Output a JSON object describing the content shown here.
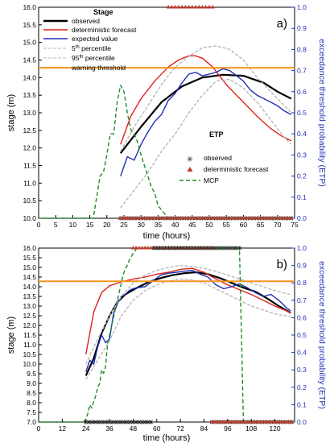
{
  "chart_data": [
    {
      "type": "line",
      "panel_label": "a)",
      "xlabel": "time (hours)",
      "ylabel": "stage (m)",
      "y2label": "exceedance threshold probability (ETP)",
      "xlim": [
        0,
        75
      ],
      "ylim": [
        10.0,
        16.0
      ],
      "y2lim": [
        0.0,
        1.0
      ],
      "x_ticks": [
        "0",
        "5",
        "10",
        "15",
        "20",
        "25",
        "30",
        "35",
        "40",
        "45",
        "50",
        "55",
        "60",
        "65",
        "70",
        "75"
      ],
      "y_ticks": [
        "10.0",
        "10.5",
        "11.0",
        "11.5",
        "12.0",
        "12.5",
        "13.0",
        "13.5",
        "14.0",
        "14.5",
        "15.0",
        "15.5",
        "16.0"
      ],
      "y2_ticks": [
        "0.0",
        "0.1",
        "0.2",
        "0.3",
        "0.4",
        "0.5",
        "0.6",
        "0.7",
        "0.8",
        "0.9",
        "1.0"
      ],
      "legend_stage_title": "Stage",
      "legend_etp_title": "ETP",
      "series": [
        {
          "name": "observed",
          "color": "#000000",
          "x": [
            24,
            30,
            36,
            42,
            48,
            54,
            60,
            66,
            70,
            74
          ],
          "y": [
            11.85,
            12.6,
            13.3,
            13.75,
            14.0,
            14.08,
            14.05,
            13.85,
            13.6,
            13.4
          ]
        },
        {
          "name": "deterministic forecast",
          "color": "#e0211b",
          "x": [
            24,
            27,
            30,
            34,
            38,
            41,
            44,
            46,
            48,
            51,
            55,
            60,
            64,
            68,
            71,
            74
          ],
          "y": [
            12.1,
            12.9,
            13.4,
            13.9,
            14.3,
            14.5,
            14.62,
            14.62,
            14.55,
            14.3,
            13.8,
            13.3,
            12.9,
            12.55,
            12.35,
            12.2
          ]
        },
        {
          "name": "expected value",
          "color": "#1f2fb5",
          "x": [
            24,
            26,
            28,
            30,
            32,
            34,
            36,
            38,
            40,
            42,
            44,
            46,
            48,
            50,
            52,
            54,
            56,
            58,
            60,
            62,
            64,
            66,
            68,
            70,
            72,
            74
          ],
          "y": [
            11.2,
            11.75,
            11.65,
            12.1,
            12.45,
            12.75,
            12.95,
            13.35,
            13.55,
            13.85,
            14.1,
            14.15,
            14.05,
            14.1,
            14.15,
            14.25,
            14.2,
            14.05,
            13.9,
            13.65,
            13.5,
            13.4,
            13.3,
            13.2,
            13.05,
            12.95
          ]
        },
        {
          "name": "5th percentile",
          "color": "#b8b8b8",
          "dashed": true,
          "x": [
            24,
            28,
            32,
            36,
            40,
            44,
            48,
            52,
            56,
            60,
            64,
            68,
            72,
            74
          ],
          "y": [
            10.3,
            10.8,
            11.3,
            11.9,
            12.4,
            13.0,
            13.5,
            13.9,
            13.95,
            13.7,
            13.3,
            12.8,
            12.3,
            12.1
          ]
        },
        {
          "name": "95th percentile",
          "color": "#b8b8b8",
          "dashed": true,
          "x": [
            24,
            28,
            32,
            36,
            40,
            44,
            48,
            52,
            56,
            60,
            64,
            68,
            72,
            74
          ],
          "y": [
            11.9,
            12.6,
            13.2,
            13.8,
            14.3,
            14.6,
            14.85,
            14.9,
            14.8,
            14.5,
            14.0,
            13.6,
            13.2,
            13.0
          ]
        },
        {
          "name": "warning threshold",
          "color": "#f7941d",
          "x": [
            0,
            75
          ],
          "y": [
            14.28,
            14.28
          ]
        },
        {
          "name": "MCP",
          "color": "#1e8c2a",
          "dashed": true,
          "axis": "right",
          "x": [
            0,
            16,
            17,
            18,
            19,
            20,
            21,
            22,
            23,
            24,
            25,
            26,
            27,
            28,
            29,
            30,
            31,
            32,
            33,
            34,
            35,
            36,
            37,
            38,
            39,
            40,
            75
          ],
          "y": [
            0.0,
            0.0,
            0.1,
            0.2,
            0.22,
            0.3,
            0.4,
            0.4,
            0.55,
            0.63,
            0.6,
            0.5,
            0.42,
            0.4,
            0.36,
            0.3,
            0.25,
            0.2,
            0.15,
            0.12,
            0.06,
            0.04,
            0.02,
            0.0,
            0.0,
            0.0,
            0.0
          ]
        }
      ],
      "markers": [
        {
          "name": "observed",
          "symbol": "asterisk",
          "color": "#222222",
          "axis": "right",
          "x": [
            24,
            25,
            26,
            27,
            28,
            29,
            30,
            31,
            32,
            33,
            34,
            35,
            36,
            37,
            38,
            39,
            40,
            41,
            42,
            43,
            44,
            45,
            46,
            47,
            48,
            49,
            50,
            51,
            52,
            53,
            54,
            55,
            56,
            57,
            58,
            59,
            60,
            61,
            62,
            63,
            64,
            65,
            66,
            67,
            68,
            69,
            70,
            71,
            72,
            73,
            74
          ],
          "y": 0.0
        },
        {
          "name": "deterministic forecast",
          "symbol": "triangle",
          "color": "#c0392b",
          "axis": "right",
          "x": [
            24,
            25,
            26,
            27,
            28,
            29,
            30,
            31,
            32,
            33,
            34,
            35,
            36,
            37,
            38,
            39,
            40,
            41,
            42,
            43,
            44,
            45,
            46,
            47,
            48,
            49,
            50,
            51,
            52,
            53,
            54,
            55,
            56,
            57,
            58,
            59,
            60,
            61,
            62,
            63,
            64,
            65,
            66,
            67,
            68,
            69,
            70,
            71,
            72,
            73,
            74
          ],
          "y": 0.0
        },
        {
          "name": "deterministic forecast",
          "symbol": "triangle",
          "color": "#c0392b",
          "axis": "right",
          "x": [
            38,
            39,
            40,
            41,
            42,
            43,
            44,
            45,
            46,
            47,
            48,
            49,
            50,
            51
          ],
          "y": 1.0
        }
      ]
    },
    {
      "type": "line",
      "panel_label": "b)",
      "xlabel": "time (hours)",
      "ylabel": "stage (m)",
      "y2label": "exceedance threshold probability (ETP)",
      "xlim": [
        0,
        130
      ],
      "ylim": [
        7.0,
        16.0
      ],
      "y2lim": [
        0.0,
        1.0
      ],
      "x_ticks": [
        "0",
        "12",
        "24",
        "36",
        "48",
        "60",
        "72",
        "84",
        "96",
        "108",
        "120"
      ],
      "y_ticks": [
        "7.0",
        "7.5",
        "8.0",
        "8.5",
        "9.0",
        "9.5",
        "10.0",
        "10.5",
        "11.0",
        "11.5",
        "12.0",
        "12.5",
        "13.0",
        "13.5",
        "14.0",
        "14.5",
        "15.0",
        "15.5",
        "16.0"
      ],
      "y2_ticks": [
        "0.0",
        "0.1",
        "0.2",
        "0.3",
        "0.4",
        "0.5",
        "0.6",
        "0.7",
        "0.8",
        "0.9",
        "1.0"
      ],
      "series": [
        {
          "name": "observed",
          "color": "#000000",
          "x": [
            24,
            28,
            32,
            36,
            40,
            44,
            50,
            56,
            62,
            68,
            74,
            80,
            86,
            92,
            98,
            104,
            110,
            116,
            122,
            128
          ],
          "y": [
            9.4,
            10.3,
            11.6,
            12.5,
            13.2,
            13.6,
            13.95,
            14.25,
            14.45,
            14.6,
            14.7,
            14.75,
            14.65,
            14.45,
            14.2,
            13.95,
            13.75,
            13.4,
            13.0,
            12.65
          ]
        },
        {
          "name": "deterministic forecast",
          "color": "#e0211b",
          "x": [
            24,
            28,
            32,
            36,
            42,
            48,
            54,
            60,
            66,
            72,
            78,
            84,
            90,
            96,
            102,
            108,
            114,
            120,
            126,
            128
          ],
          "y": [
            10.5,
            12.7,
            13.7,
            14.05,
            14.25,
            14.4,
            14.5,
            14.65,
            14.75,
            14.9,
            14.95,
            14.75,
            14.4,
            14.1,
            13.85,
            13.6,
            13.3,
            13.0,
            12.75,
            12.65
          ]
        },
        {
          "name": "expected value",
          "color": "#1f2fb5",
          "x": [
            24,
            26,
            28,
            30,
            32,
            34,
            36,
            38,
            40,
            42,
            44,
            46,
            48,
            50,
            54,
            58,
            62,
            66,
            70,
            74,
            78,
            82,
            86,
            90,
            94,
            98,
            102,
            106,
            110,
            114,
            118,
            122,
            126,
            128
          ],
          "y": [
            9.6,
            10.2,
            10.0,
            10.9,
            11.5,
            11.1,
            11.3,
            12.6,
            13.1,
            13.5,
            13.6,
            13.8,
            13.9,
            13.95,
            14.0,
            14.3,
            14.6,
            14.7,
            14.75,
            14.8,
            14.85,
            14.65,
            14.5,
            14.1,
            13.9,
            14.0,
            14.15,
            13.95,
            13.7,
            13.5,
            13.6,
            13.3,
            12.9,
            12.75
          ]
        },
        {
          "name": "5th percentile",
          "color": "#b8b8b8",
          "dashed": true,
          "x": [
            24,
            30,
            36,
            42,
            48,
            54,
            60,
            66,
            72,
            78,
            84,
            90,
            96,
            102,
            108,
            114,
            120,
            128
          ],
          "y": [
            9.2,
            10.2,
            11.2,
            12.5,
            13.3,
            13.8,
            14.1,
            14.3,
            14.4,
            14.35,
            14.2,
            13.9,
            13.6,
            13.3,
            13.0,
            12.8,
            12.6,
            12.45
          ]
        },
        {
          "name": "95th percentile",
          "color": "#b8b8b8",
          "dashed": true,
          "x": [
            24,
            30,
            36,
            42,
            48,
            54,
            60,
            66,
            72,
            78,
            84,
            90,
            96,
            102,
            108,
            114,
            120,
            128
          ],
          "y": [
            10.0,
            11.3,
            12.5,
            13.5,
            14.2,
            14.6,
            14.85,
            15.0,
            15.1,
            15.05,
            14.95,
            14.8,
            14.6,
            14.4,
            14.2,
            14.0,
            13.8,
            13.6
          ]
        },
        {
          "name": "warning threshold",
          "color": "#f7941d",
          "x": [
            0,
            130
          ],
          "y": [
            14.28,
            14.28
          ]
        },
        {
          "name": "MCP",
          "color": "#1e8c2a",
          "dashed": true,
          "axis": "right",
          "x": [
            0,
            23,
            24,
            25,
            26,
            27,
            28,
            29,
            30,
            31,
            32,
            33,
            34,
            35,
            36,
            37,
            38,
            39,
            40,
            41,
            42,
            43,
            44,
            45,
            46,
            47,
            48,
            50,
            52,
            102,
            103,
            104,
            130
          ],
          "y": [
            0.0,
            0.0,
            0.02,
            0.05,
            0.1,
            0.08,
            0.12,
            0.15,
            0.2,
            0.22,
            0.3,
            0.28,
            0.32,
            0.45,
            0.5,
            0.55,
            0.6,
            0.65,
            0.7,
            0.75,
            0.8,
            0.85,
            0.88,
            0.9,
            0.93,
            0.95,
            0.97,
            1.0,
            1.0,
            1.0,
            0.5,
            0.0,
            0.0
          ]
        }
      ],
      "markers": [
        {
          "name": "observed",
          "symbol": "asterisk",
          "color": "#222222",
          "axis": "right",
          "x": [
            24,
            25.5,
            27,
            28.5,
            30,
            31.5,
            33,
            34.5,
            36,
            37.5,
            39,
            40.5,
            42,
            43.5,
            45,
            46.5,
            48,
            49.5,
            51,
            52.5,
            54,
            55.5,
            57,
            88,
            89.5,
            91,
            92.5,
            94,
            95.5,
            97,
            98.5,
            100,
            101.5,
            103,
            104.5,
            106,
            107.5,
            109,
            110.5,
            112,
            113.5,
            115,
            116.5,
            118,
            119.5,
            121,
            122.5,
            124,
            125.5,
            127,
            128.5
          ],
          "y": 0.0
        },
        {
          "name": "deterministic forecast",
          "symbol": "triangle",
          "color": "#c0392b",
          "axis": "right",
          "x": [
            88,
            89.5,
            91,
            92.5,
            94,
            95.5,
            97,
            98.5,
            100,
            101.5,
            103,
            104.5,
            106,
            107.5,
            109,
            110.5,
            112,
            113.5,
            115,
            116.5,
            118,
            119.5,
            121,
            122.5,
            124,
            125.5,
            127,
            128.5
          ],
          "y": 0.0
        },
        {
          "name": "deterministic forecast",
          "symbol": "triangle",
          "color": "#c0392b",
          "axis": "right",
          "x": [
            48,
            49.5,
            51,
            52.5,
            54,
            55.5,
            57,
            58.5,
            60,
            61.5,
            63,
            64.5,
            66,
            67.5,
            69,
            70.5,
            72,
            73.5,
            75,
            76.5,
            78,
            79.5,
            81,
            82.5,
            84,
            85.5,
            87,
            88.5
          ],
          "y": 1.0
        },
        {
          "name": "observed",
          "symbol": "asterisk",
          "color": "#222222",
          "axis": "right",
          "x": [
            58.5,
            60,
            61.5,
            63,
            64.5,
            66,
            67.5,
            69,
            70.5,
            72,
            73.5,
            75,
            76.5,
            78,
            79.5,
            81,
            82.5,
            84,
            85.5,
            87,
            88.5,
            90,
            91.5,
            93,
            94.5,
            96,
            97.5,
            99,
            100.5,
            102
          ],
          "y": 1.0
        }
      ]
    }
  ]
}
